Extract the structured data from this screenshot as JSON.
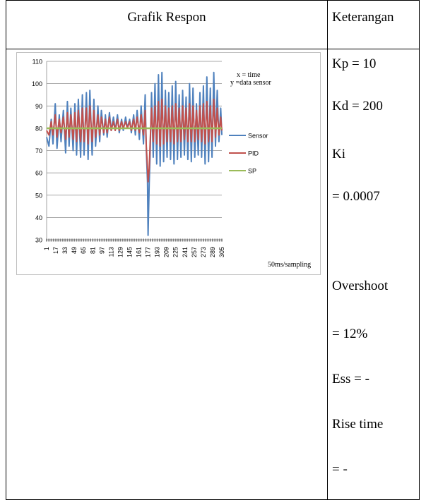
{
  "table": {
    "header_left": "Grafik Respon",
    "header_right": "Keterangan"
  },
  "chart_data": {
    "type": "line",
    "annotation_lines": [
      "x = time",
      "y =data sensor"
    ],
    "x_unit_label": "50ms/sampling",
    "ylim": [
      30,
      110
    ],
    "y_ticks": [
      30,
      40,
      50,
      60,
      70,
      80,
      90,
      100,
      110
    ],
    "x_tick_labels": [
      1,
      17,
      33,
      49,
      65,
      81,
      97,
      113,
      129,
      145,
      161,
      177,
      193,
      209,
      225,
      241,
      257,
      273,
      289,
      305
    ],
    "x_range": [
      1,
      305
    ],
    "grid": true,
    "legend_position": "right",
    "colors": {
      "Sensor": "#4f81bd",
      "PID": "#c0504d",
      "SP": "#9bbb59"
    },
    "series": [
      {
        "name": "Sensor",
        "x": [
          1,
          5,
          9,
          12,
          16,
          19,
          23,
          26,
          30,
          34,
          37,
          40,
          43,
          47,
          50,
          53,
          56,
          60,
          63,
          66,
          70,
          73,
          76,
          80,
          83,
          86,
          90,
          93,
          96,
          100,
          103,
          106,
          110,
          113,
          117,
          120,
          124,
          127,
          131,
          134,
          138,
          141,
          145,
          148,
          152,
          155,
          158,
          162,
          165,
          169,
          172,
          174,
          176,
          177,
          179,
          181,
          183,
          186,
          189,
          192,
          195,
          198,
          201,
          204,
          207,
          210,
          213,
          216,
          219,
          222,
          225,
          228,
          231,
          234,
          237,
          240,
          243,
          246,
          249,
          252,
          255,
          258,
          261,
          264,
          267,
          270,
          273,
          276,
          279,
          282,
          285,
          288,
          291,
          294,
          297,
          300,
          303,
          305
        ],
        "y": [
          76,
          72,
          84,
          73,
          91,
          71,
          86,
          74,
          88,
          69,
          92,
          72,
          89,
          70,
          91,
          68,
          93,
          67,
          95,
          68,
          96,
          66,
          97,
          68,
          93,
          72,
          90,
          74,
          88,
          77,
          86,
          76,
          87,
          79,
          85,
          79,
          86,
          78,
          84,
          79,
          85,
          80,
          84,
          78,
          86,
          77,
          88,
          75,
          90,
          73,
          95,
          70,
          56,
          32,
          55,
          72,
          96,
          67,
          100,
          64,
          104,
          63,
          105,
          65,
          97,
          67,
          96,
          66,
          99,
          64,
          101,
          66,
          95,
          67,
          97,
          68,
          94,
          66,
          100,
          65,
          98,
          67,
          91,
          68,
          96,
          67,
          99,
          64,
          103,
          65,
          98,
          67,
          105,
          72,
          97,
          74,
          89,
          77
        ]
      },
      {
        "name": "PID",
        "x": [
          1,
          5,
          9,
          12,
          16,
          19,
          23,
          26,
          30,
          34,
          37,
          40,
          43,
          47,
          50,
          53,
          56,
          60,
          63,
          66,
          70,
          73,
          76,
          80,
          83,
          86,
          90,
          93,
          96,
          100,
          103,
          106,
          110,
          113,
          117,
          120,
          124,
          127,
          131,
          134,
          138,
          141,
          145,
          148,
          152,
          155,
          158,
          162,
          165,
          169,
          172,
          174,
          176,
          177,
          179,
          181,
          183,
          186,
          189,
          192,
          195,
          198,
          201,
          204,
          207,
          210,
          213,
          216,
          219,
          222,
          225,
          228,
          231,
          234,
          237,
          240,
          243,
          246,
          249,
          252,
          255,
          258,
          261,
          264,
          267,
          270,
          273,
          276,
          279,
          282,
          285,
          288,
          291,
          294,
          297,
          300,
          303,
          305
        ],
        "y": [
          79,
          77,
          83,
          77,
          86,
          76,
          84,
          78,
          85,
          75,
          87,
          76,
          86,
          75,
          87,
          74,
          88,
          74,
          89,
          74,
          89,
          73,
          90,
          74,
          88,
          76,
          86,
          77,
          85,
          78,
          84,
          78,
          85,
          79,
          83,
          79,
          84,
          79,
          83,
          80,
          83,
          80,
          83,
          79,
          84,
          79,
          85,
          78,
          86,
          77,
          88,
          72,
          62,
          56,
          62,
          76,
          89,
          74,
          90,
          73,
          92,
          72,
          93,
          73,
          90,
          74,
          89,
          74,
          90,
          73,
          91,
          74,
          89,
          74,
          90,
          75,
          89,
          74,
          91,
          74,
          90,
          74,
          88,
          75,
          90,
          74,
          91,
          73,
          92,
          74,
          90,
          74,
          93,
          76,
          89,
          77,
          85,
          79
        ]
      },
      {
        "name": "SP",
        "x": [
          1,
          305
        ],
        "y": [
          80,
          80
        ]
      }
    ]
  },
  "notes": {
    "kp": "Kp = 10",
    "kd": "Kd = 200",
    "ki": "Ki",
    "ki_value": "= 0.0007",
    "overshoot": "Overshoot",
    "overshoot_value": "= 12%",
    "ess": "Ess = -",
    "rise_time": "Rise time",
    "rise_time_value": "= -"
  }
}
